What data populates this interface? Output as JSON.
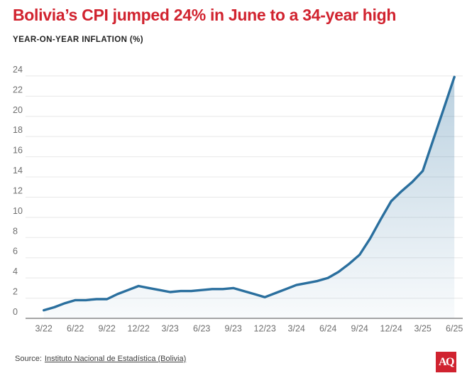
{
  "header": {
    "title": "Bolivia’s CPI jumped 24% in June to a 34-year high",
    "subtitle": "YEAR-ON-YEAR INFLATION (%)"
  },
  "footer": {
    "source_label": "Source:",
    "source_link": "Instituto Nacional de Estadística (Bolivia)",
    "logo": "AQ"
  },
  "colors": {
    "title": "#d1232f",
    "line": "#2a6f9e",
    "fill_top": "rgba(42,111,158,0.32)",
    "fill_bottom": "rgba(42,111,158,0.03)",
    "grid": "#e8e8e8",
    "axis": "#a6a6a6",
    "tick_text": "#6f6f6f",
    "logo_bg": "#d0222f",
    "source_text": "#404040"
  },
  "chart_data": {
    "type": "area",
    "title": "Bolivia’s CPI jumped 24% in June to a 34-year high",
    "ylabel": "YEAR-ON-YEAR INFLATION (%)",
    "xlabel": "",
    "x": [
      "3/22",
      "4/22",
      "5/22",
      "6/22",
      "7/22",
      "8/22",
      "9/22",
      "10/22",
      "11/22",
      "12/22",
      "1/23",
      "2/23",
      "3/23",
      "4/23",
      "5/23",
      "6/23",
      "7/23",
      "8/23",
      "9/23",
      "10/23",
      "11/23",
      "12/23",
      "1/24",
      "2/24",
      "3/24",
      "4/24",
      "5/24",
      "6/24",
      "7/24",
      "8/24",
      "9/24",
      "10/24",
      "11/24",
      "12/24",
      "1/25",
      "2/25",
      "3/25",
      "4/25",
      "5/25",
      "6/25"
    ],
    "values": [
      0.8,
      1.1,
      1.5,
      1.8,
      1.8,
      1.9,
      1.9,
      2.4,
      2.8,
      3.2,
      3.0,
      2.8,
      2.6,
      2.7,
      2.7,
      2.8,
      2.9,
      2.9,
      3.0,
      2.7,
      2.4,
      2.1,
      2.5,
      2.9,
      3.3,
      3.5,
      3.7,
      4.0,
      4.6,
      5.4,
      6.3,
      7.9,
      9.8,
      11.6,
      12.6,
      13.5,
      14.6,
      17.7,
      20.8,
      23.9
    ],
    "x_tick_labels": [
      "3/22",
      "6/22",
      "9/22",
      "12/22",
      "3/23",
      "6/23",
      "9/23",
      "12/23",
      "3/24",
      "6/24",
      "9/24",
      "12/24",
      "3/25",
      "6/25"
    ],
    "y_ticks": [
      0,
      2,
      4,
      6,
      8,
      10,
      12,
      14,
      16,
      18,
      20,
      22,
      24
    ],
    "ylim": [
      0,
      24
    ],
    "grid": true,
    "legend": false,
    "source": "Instituto Nacional de Estadística (Bolivia)"
  }
}
